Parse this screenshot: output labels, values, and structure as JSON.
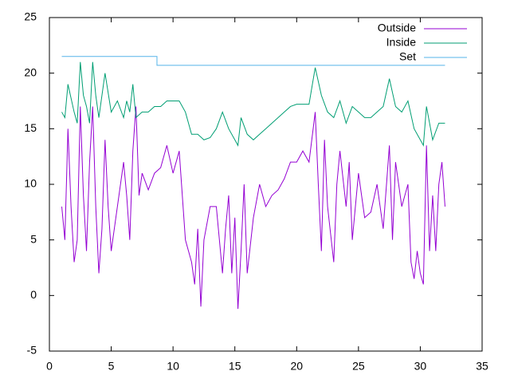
{
  "chart_data": {
    "type": "line",
    "xlim": [
      0,
      35
    ],
    "xticks": [
      0,
      5,
      10,
      15,
      20,
      25,
      30,
      35
    ],
    "ylim": [
      -5,
      25
    ],
    "yticks": [
      -5,
      0,
      5,
      10,
      15,
      20,
      25
    ],
    "legend": "top-right",
    "series": [
      {
        "name": "Outside",
        "color": "#9400d3",
        "x": [
          1,
          1.25,
          1.5,
          1.75,
          2,
          2.25,
          2.5,
          2.75,
          3,
          3.25,
          3.5,
          3.75,
          4,
          4.25,
          4.5,
          4.75,
          5,
          5.5,
          6,
          6.25,
          6.5,
          6.75,
          7,
          7.25,
          7.5,
          8,
          8.5,
          9,
          9.5,
          10,
          10.5,
          11,
          11.5,
          11.75,
          12,
          12.25,
          12.5,
          13,
          13.5,
          14,
          14.25,
          14.5,
          14.75,
          15,
          15.25,
          15.5,
          15.75,
          16,
          16.5,
          17,
          17.5,
          18,
          18.5,
          19,
          19.5,
          20,
          20.5,
          21,
          21.5,
          21.75,
          22,
          22.25,
          22.5,
          23,
          23.25,
          23.5,
          24,
          24.25,
          24.5,
          25,
          25.5,
          26,
          26.5,
          27,
          27.5,
          27.75,
          28,
          28.5,
          29,
          29.25,
          29.5,
          29.75,
          30,
          30.25,
          30.5,
          30.75,
          31,
          31.25,
          31.5,
          31.75,
          32
        ],
        "values": [
          8,
          5,
          15,
          8,
          3,
          5,
          17,
          9,
          4,
          12,
          17,
          8,
          2,
          6,
          14,
          8,
          4,
          8,
          12,
          9,
          5,
          13,
          17,
          9,
          11,
          9.5,
          11,
          11.5,
          13.5,
          11,
          13,
          5,
          3,
          1,
          6,
          -1,
          5,
          8,
          8,
          2,
          6,
          9,
          2,
          7,
          -1.2,
          4,
          10,
          2,
          7,
          10,
          8,
          9,
          9.5,
          10.5,
          12,
          12,
          13,
          12,
          16.5,
          10,
          4,
          14,
          8,
          3,
          10,
          13,
          8,
          12,
          5,
          11,
          7,
          7.5,
          10,
          6,
          13.5,
          5,
          12,
          8,
          10,
          3,
          1.5,
          4,
          2,
          1,
          13.5,
          4,
          9,
          4,
          10,
          12,
          8
        ]
      },
      {
        "name": "Inside",
        "color": "#009e73",
        "x": [
          1,
          1.25,
          1.5,
          2,
          2.25,
          2.5,
          2.75,
          3,
          3.25,
          3.5,
          3.75,
          4,
          4.5,
          5,
          5.5,
          6,
          6.25,
          6.5,
          6.75,
          7,
          7.5,
          8,
          8.5,
          9,
          9.5,
          10,
          10.5,
          11,
          11.5,
          12,
          12.5,
          13,
          13.5,
          14,
          14.5,
          15,
          15.25,
          15.5,
          16,
          16.5,
          17,
          17.5,
          18,
          18.5,
          19,
          19.5,
          20,
          20.5,
          21,
          21.5,
          22,
          22.5,
          23,
          23.5,
          24,
          24.5,
          25,
          25.5,
          26,
          26.5,
          27,
          27.5,
          28,
          28.5,
          29,
          29.5,
          30,
          30.25,
          30.5,
          31,
          31.5,
          32
        ],
        "values": [
          16.5,
          16,
          19,
          16.5,
          15.5,
          21,
          18,
          17,
          15.5,
          21,
          18,
          16,
          20,
          16.5,
          17.5,
          16,
          17.5,
          16.5,
          19,
          16,
          16.5,
          16.5,
          17,
          17,
          17.5,
          17.5,
          17.5,
          16.5,
          14.5,
          14.5,
          14,
          14.2,
          15,
          16.5,
          15,
          14,
          13.5,
          16,
          14.5,
          14,
          14.5,
          15,
          15.5,
          16,
          16.5,
          17,
          17.2,
          17.2,
          17.2,
          20.5,
          18,
          16.5,
          16,
          17.5,
          15.5,
          17,
          16.5,
          16,
          16,
          16.5,
          17,
          19.5,
          17,
          16.5,
          17.5,
          15,
          14,
          13.5,
          17,
          14,
          15.5,
          15.5
        ]
      },
      {
        "name": "Set",
        "color": "#56b4e9",
        "x": [
          1,
          8.7,
          8.7,
          32
        ],
        "values": [
          21.5,
          21.5,
          20.7,
          20.7
        ]
      }
    ]
  }
}
